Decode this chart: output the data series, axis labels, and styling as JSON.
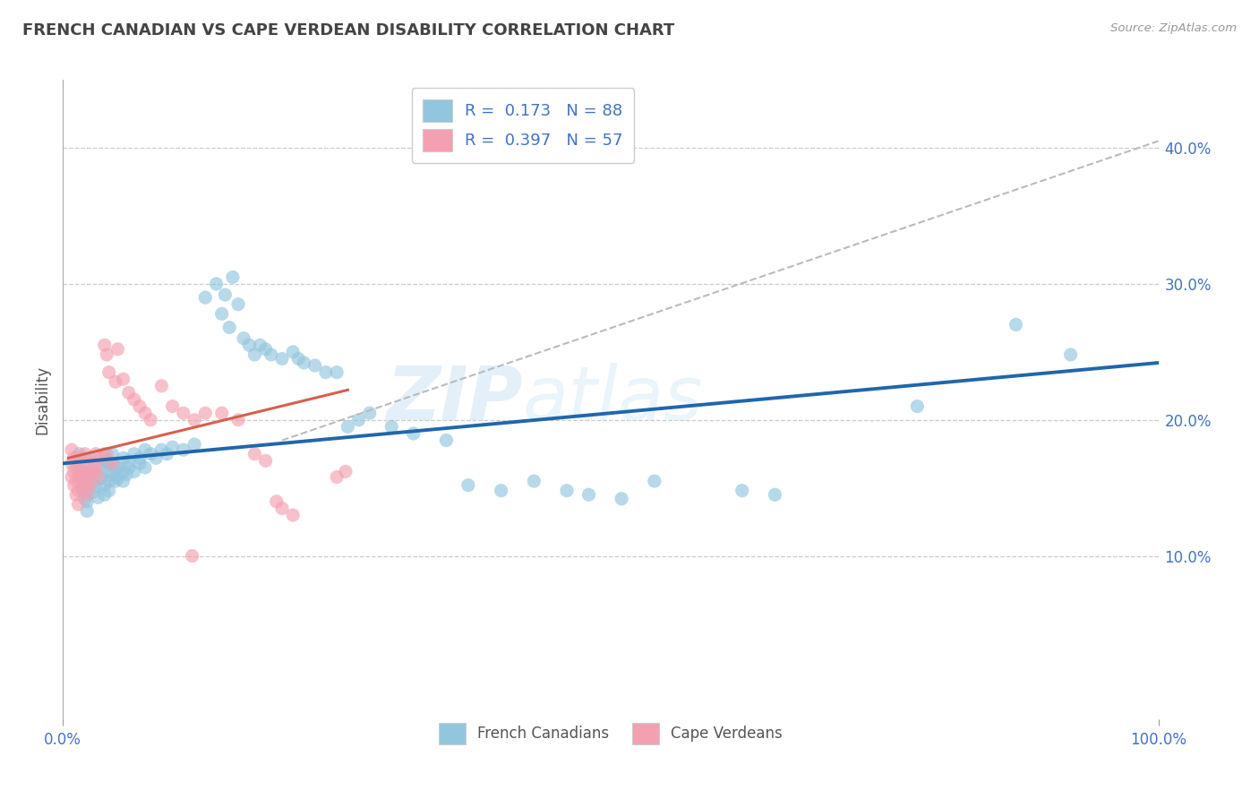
{
  "title": "FRENCH CANADIAN VS CAPE VERDEAN DISABILITY CORRELATION CHART",
  "source": "Source: ZipAtlas.com",
  "ylabel": "Disability",
  "xlim": [
    0.0,
    1.0
  ],
  "ylim": [
    -0.02,
    0.45
  ],
  "yticks": [
    0.1,
    0.2,
    0.3,
    0.4
  ],
  "ytick_labels": [
    "10.0%",
    "20.0%",
    "30.0%",
    "40.0%"
  ],
  "xtick_labels": [
    "0.0%",
    "100.0%"
  ],
  "blue_color": "#92c5de",
  "pink_color": "#f4a0b0",
  "line_blue": "#2166ac",
  "line_pink_solid": "#d6604d",
  "line_gray_dashed": "#bbbbbb",
  "title_color": "#444444",
  "axis_label_color": "#4472c4",
  "blue_scatter": [
    [
      0.015,
      0.175
    ],
    [
      0.018,
      0.162
    ],
    [
      0.02,
      0.155
    ],
    [
      0.022,
      0.148
    ],
    [
      0.015,
      0.168
    ],
    [
      0.018,
      0.158
    ],
    [
      0.02,
      0.148
    ],
    [
      0.022,
      0.14
    ],
    [
      0.015,
      0.16
    ],
    [
      0.018,
      0.15
    ],
    [
      0.02,
      0.142
    ],
    [
      0.022,
      0.133
    ],
    [
      0.025,
      0.172
    ],
    [
      0.025,
      0.162
    ],
    [
      0.028,
      0.155
    ],
    [
      0.028,
      0.147
    ],
    [
      0.03,
      0.168
    ],
    [
      0.03,
      0.159
    ],
    [
      0.03,
      0.151
    ],
    [
      0.032,
      0.143
    ],
    [
      0.035,
      0.165
    ],
    [
      0.035,
      0.157
    ],
    [
      0.038,
      0.152
    ],
    [
      0.038,
      0.145
    ],
    [
      0.04,
      0.17
    ],
    [
      0.04,
      0.162
    ],
    [
      0.042,
      0.155
    ],
    [
      0.042,
      0.148
    ],
    [
      0.045,
      0.168
    ],
    [
      0.045,
      0.16
    ],
    [
      0.048,
      0.155
    ],
    [
      0.05,
      0.165
    ],
    [
      0.05,
      0.157
    ],
    [
      0.055,
      0.162
    ],
    [
      0.055,
      0.155
    ],
    [
      0.058,
      0.16
    ],
    [
      0.06,
      0.165
    ],
    [
      0.065,
      0.162
    ],
    [
      0.07,
      0.168
    ],
    [
      0.075,
      0.165
    ],
    [
      0.038,
      0.175
    ],
    [
      0.042,
      0.168
    ],
    [
      0.045,
      0.175
    ],
    [
      0.048,
      0.165
    ],
    [
      0.055,
      0.172
    ],
    [
      0.06,
      0.17
    ],
    [
      0.065,
      0.175
    ],
    [
      0.07,
      0.172
    ],
    [
      0.075,
      0.178
    ],
    [
      0.08,
      0.175
    ],
    [
      0.085,
      0.172
    ],
    [
      0.09,
      0.178
    ],
    [
      0.095,
      0.175
    ],
    [
      0.1,
      0.18
    ],
    [
      0.11,
      0.178
    ],
    [
      0.12,
      0.182
    ],
    [
      0.13,
      0.29
    ],
    [
      0.14,
      0.3
    ],
    [
      0.148,
      0.292
    ],
    [
      0.155,
      0.305
    ],
    [
      0.16,
      0.285
    ],
    [
      0.145,
      0.278
    ],
    [
      0.152,
      0.268
    ],
    [
      0.165,
      0.26
    ],
    [
      0.17,
      0.255
    ],
    [
      0.175,
      0.248
    ],
    [
      0.18,
      0.255
    ],
    [
      0.185,
      0.252
    ],
    [
      0.19,
      0.248
    ],
    [
      0.2,
      0.245
    ],
    [
      0.21,
      0.25
    ],
    [
      0.215,
      0.245
    ],
    [
      0.22,
      0.242
    ],
    [
      0.23,
      0.24
    ],
    [
      0.24,
      0.235
    ],
    [
      0.25,
      0.235
    ],
    [
      0.26,
      0.195
    ],
    [
      0.27,
      0.2
    ],
    [
      0.28,
      0.205
    ],
    [
      0.3,
      0.195
    ],
    [
      0.32,
      0.19
    ],
    [
      0.35,
      0.185
    ],
    [
      0.37,
      0.152
    ],
    [
      0.4,
      0.148
    ],
    [
      0.43,
      0.155
    ],
    [
      0.46,
      0.148
    ],
    [
      0.48,
      0.145
    ],
    [
      0.51,
      0.142
    ],
    [
      0.54,
      0.155
    ],
    [
      0.62,
      0.148
    ],
    [
      0.65,
      0.145
    ],
    [
      0.78,
      0.21
    ],
    [
      0.87,
      0.27
    ],
    [
      0.92,
      0.248
    ]
  ],
  "pink_scatter": [
    [
      0.008,
      0.178
    ],
    [
      0.01,
      0.172
    ],
    [
      0.012,
      0.165
    ],
    [
      0.014,
      0.158
    ],
    [
      0.008,
      0.168
    ],
    [
      0.01,
      0.162
    ],
    [
      0.012,
      0.155
    ],
    [
      0.014,
      0.148
    ],
    [
      0.008,
      0.158
    ],
    [
      0.01,
      0.152
    ],
    [
      0.012,
      0.145
    ],
    [
      0.014,
      0.138
    ],
    [
      0.016,
      0.172
    ],
    [
      0.016,
      0.162
    ],
    [
      0.018,
      0.155
    ],
    [
      0.018,
      0.148
    ],
    [
      0.02,
      0.175
    ],
    [
      0.02,
      0.165
    ],
    [
      0.02,
      0.158
    ],
    [
      0.022,
      0.152
    ],
    [
      0.022,
      0.145
    ],
    [
      0.025,
      0.168
    ],
    [
      0.025,
      0.16
    ],
    [
      0.025,
      0.152
    ],
    [
      0.028,
      0.162
    ],
    [
      0.03,
      0.175
    ],
    [
      0.03,
      0.165
    ],
    [
      0.032,
      0.158
    ],
    [
      0.035,
      0.172
    ],
    [
      0.038,
      0.255
    ],
    [
      0.04,
      0.248
    ],
    [
      0.042,
      0.235
    ],
    [
      0.048,
      0.228
    ],
    [
      0.04,
      0.175
    ],
    [
      0.045,
      0.168
    ],
    [
      0.05,
      0.252
    ],
    [
      0.055,
      0.23
    ],
    [
      0.06,
      0.22
    ],
    [
      0.065,
      0.215
    ],
    [
      0.07,
      0.21
    ],
    [
      0.075,
      0.205
    ],
    [
      0.08,
      0.2
    ],
    [
      0.09,
      0.225
    ],
    [
      0.1,
      0.21
    ],
    [
      0.11,
      0.205
    ],
    [
      0.12,
      0.2
    ],
    [
      0.13,
      0.205
    ],
    [
      0.145,
      0.205
    ],
    [
      0.16,
      0.2
    ],
    [
      0.175,
      0.175
    ],
    [
      0.185,
      0.17
    ],
    [
      0.25,
      0.158
    ],
    [
      0.258,
      0.162
    ],
    [
      0.195,
      0.14
    ],
    [
      0.2,
      0.135
    ],
    [
      0.21,
      0.13
    ],
    [
      0.118,
      0.1
    ]
  ],
  "blue_line": [
    [
      0.0,
      0.168
    ],
    [
      1.0,
      0.242
    ]
  ],
  "pink_line_solid": [
    [
      0.005,
      0.172
    ],
    [
      0.26,
      0.222
    ]
  ],
  "gray_line_dashed": [
    [
      0.2,
      0.185
    ],
    [
      1.0,
      0.405
    ]
  ]
}
